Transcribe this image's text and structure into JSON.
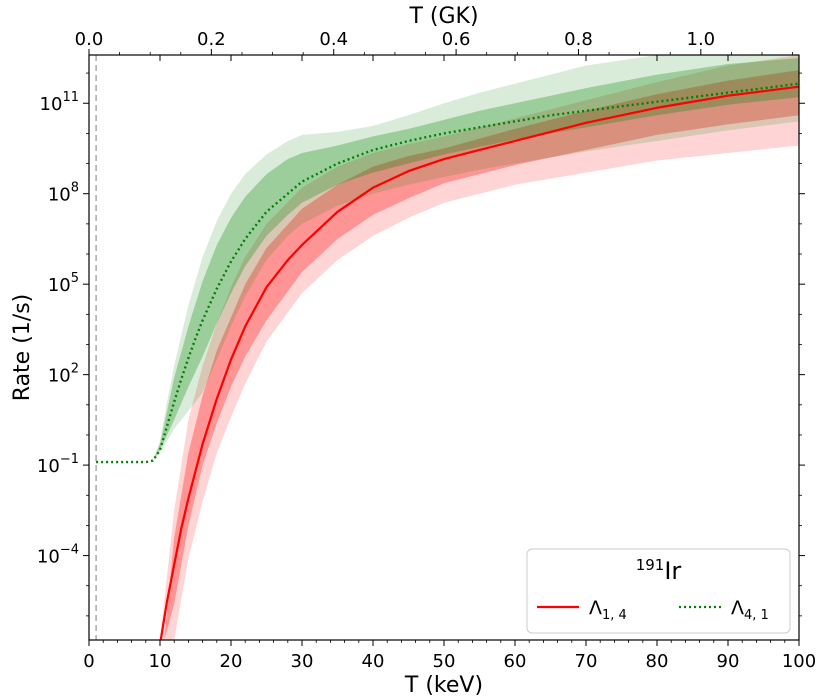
{
  "chart_data": {
    "type": "line",
    "xlabel": "T (keV)",
    "ylabel": "Rate (1/s)",
    "top_xlabel": "T (GK)",
    "x_range": [
      0,
      100
    ],
    "y_range_log10": [
      -6.8,
      12.6
    ],
    "y_scale": "log",
    "grid": false,
    "x_ticks": [
      0,
      10,
      20,
      30,
      40,
      50,
      60,
      70,
      80,
      90,
      100
    ],
    "y_ticks": [
      {
        "exp": -4,
        "base": "10",
        "sup": "−4"
      },
      {
        "exp": -1,
        "base": "10",
        "sup": "−1"
      },
      {
        "exp": 2,
        "base": "10",
        "sup": "2"
      },
      {
        "exp": 5,
        "base": "10",
        "sup": "5"
      },
      {
        "exp": 8,
        "base": "10",
        "sup": "8"
      },
      {
        "exp": 11,
        "base": "10",
        "sup": "11"
      }
    ],
    "top_ticks": [
      {
        "gk": 0.0,
        "label": "0.0"
      },
      {
        "gk": 0.2,
        "label": "0.2"
      },
      {
        "gk": 0.4,
        "label": "0.4"
      },
      {
        "gk": 0.6,
        "label": "0.6"
      },
      {
        "gk": 0.8,
        "label": "0.8"
      },
      {
        "gk": 1.0,
        "label": "1.0"
      }
    ],
    "reference_line": {
      "x": 1.0,
      "style": "dashed",
      "color": "#aaaaaa"
    },
    "legend": {
      "title_sup": "191",
      "title_main": "Ir",
      "placement": "lower-right",
      "entries": [
        {
          "main": "Λ",
          "sub": "1, 4",
          "color": "#ff0000",
          "style": "solid"
        },
        {
          "main": "Λ",
          "sub": "4, 1",
          "color": "#008000",
          "style": "dotted"
        }
      ]
    },
    "series": [
      {
        "name": "Λ1,4",
        "color": "#ff0000",
        "style": "solid",
        "x": [
          10.1,
          11,
          12,
          13,
          14,
          15,
          16,
          18,
          20,
          22,
          25,
          28,
          30,
          35,
          40,
          45,
          50,
          55,
          60,
          65,
          70,
          75,
          80,
          85,
          90,
          95,
          100
        ],
        "y_log10": [
          -6.8,
          -5.5,
          -4.3,
          -3.1,
          -2.1,
          -1.2,
          -0.3,
          1.2,
          2.5,
          3.6,
          4.9,
          5.8,
          6.3,
          7.4,
          8.2,
          8.75,
          9.15,
          9.45,
          9.75,
          10.05,
          10.35,
          10.6,
          10.85,
          11.05,
          11.25,
          11.4,
          11.55
        ]
      },
      {
        "name": "Λ4,1",
        "color": "#008000",
        "style": "dotted",
        "x": [
          1,
          2,
          4,
          6,
          8,
          9,
          10,
          11,
          12,
          13,
          14,
          15,
          16,
          18,
          20,
          22,
          25,
          28,
          30,
          35,
          40,
          45,
          50,
          55,
          60,
          65,
          70,
          75,
          80,
          85,
          90,
          95,
          100
        ],
        "y_log10": [
          -0.9,
          -0.9,
          -0.9,
          -0.9,
          -0.9,
          -0.85,
          -0.5,
          0.3,
          1.1,
          1.85,
          2.55,
          3.2,
          3.8,
          4.85,
          5.75,
          6.5,
          7.4,
          8.0,
          8.4,
          9.0,
          9.45,
          9.75,
          10.0,
          10.2,
          10.4,
          10.6,
          10.75,
          10.9,
          11.05,
          11.2,
          11.35,
          11.5,
          11.65
        ]
      }
    ],
    "bands": [
      {
        "series": "Λ1,4",
        "level": "outer",
        "color": "#ff0000",
        "opacity": 0.17,
        "x": [
          10,
          12,
          14,
          16,
          18,
          20,
          22,
          25,
          30,
          35,
          40,
          45,
          50,
          60,
          70,
          80,
          90,
          100
        ],
        "upper_log10": [
          -6.8,
          -2.5,
          0.5,
          2.3,
          3.7,
          4.9,
          5.9,
          7.0,
          8.2,
          8.9,
          9.35,
          9.65,
          9.9,
          10.5,
          11.1,
          11.7,
          12.25,
          12.6
        ],
        "lower_log10": [
          -6.8,
          -6.8,
          -4.1,
          -2.2,
          -0.6,
          0.6,
          1.7,
          3.1,
          4.7,
          5.8,
          6.6,
          7.2,
          7.7,
          8.3,
          8.7,
          9.1,
          9.35,
          9.6
        ]
      },
      {
        "series": "Λ1,4",
        "level": "inner",
        "color": "#ff0000",
        "opacity": 0.3,
        "x": [
          10.6,
          12,
          14,
          16,
          18,
          20,
          22,
          25,
          30,
          35,
          40,
          45,
          50,
          60,
          70,
          80,
          90,
          100
        ],
        "upper_log10": [
          -6.8,
          -3.4,
          -0.6,
          1.3,
          2.8,
          3.9,
          5.0,
          6.2,
          7.5,
          8.3,
          8.9,
          9.25,
          9.5,
          10.15,
          10.75,
          11.3,
          11.75,
          12.1
        ],
        "lower_log10": [
          -6.8,
          -5.6,
          -3.0,
          -1.0,
          0.4,
          1.6,
          2.6,
          3.8,
          5.4,
          6.5,
          7.3,
          7.85,
          8.35,
          8.95,
          9.45,
          9.95,
          10.3,
          10.6
        ]
      },
      {
        "series": "Λ4,1",
        "level": "outer",
        "color": "#008000",
        "opacity": 0.15,
        "x": [
          9,
          10,
          11,
          12,
          14,
          16,
          18,
          20,
          22,
          25,
          28,
          30,
          35,
          40,
          45,
          50,
          55,
          60,
          65,
          70,
          80,
          90,
          100
        ],
        "upper_log10": [
          -0.85,
          -0.2,
          1.1,
          2.3,
          4.3,
          5.9,
          7.1,
          8.0,
          8.65,
          9.3,
          9.75,
          9.95,
          10.05,
          10.25,
          10.6,
          11.0,
          11.35,
          11.65,
          11.95,
          12.25,
          12.6,
          12.6,
          12.6
        ],
        "lower_log10": [
          -0.85,
          -0.6,
          -0.2,
          0.2,
          0.8,
          1.4,
          2.5,
          3.6,
          4.6,
          5.8,
          6.6,
          7.0,
          7.6,
          8.0,
          8.3,
          8.55,
          8.8,
          9.0,
          9.2,
          9.4,
          9.75,
          10.1,
          10.4
        ]
      },
      {
        "series": "Λ4,1",
        "level": "inner",
        "color": "#008000",
        "opacity": 0.28,
        "x": [
          9,
          10,
          11,
          12,
          14,
          16,
          18,
          20,
          22,
          25,
          28,
          30,
          35,
          40,
          45,
          50,
          55,
          60,
          65,
          70,
          80,
          90,
          100
        ],
        "upper_log10": [
          -0.85,
          -0.3,
          0.8,
          1.9,
          3.6,
          5.1,
          6.3,
          7.2,
          7.9,
          8.65,
          9.15,
          9.35,
          9.6,
          9.9,
          10.15,
          10.45,
          10.75,
          11.0,
          11.25,
          11.5,
          11.95,
          12.3,
          12.5
        ],
        "lower_log10": [
          -0.85,
          -0.5,
          0.0,
          0.5,
          1.6,
          2.6,
          3.7,
          4.7,
          5.6,
          6.6,
          7.3,
          7.7,
          8.3,
          8.7,
          9.0,
          9.3,
          9.55,
          9.8,
          10.0,
          10.2,
          10.6,
          10.95,
          11.2
        ]
      }
    ]
  }
}
